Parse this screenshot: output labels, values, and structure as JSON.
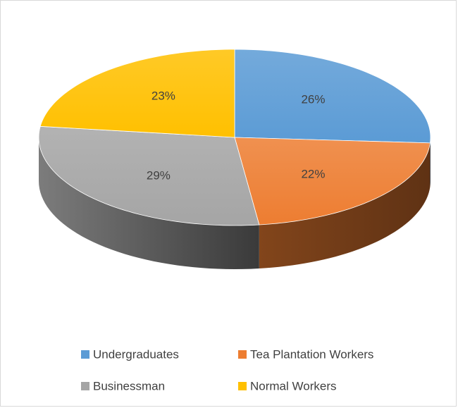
{
  "chart_data": {
    "type": "pie",
    "categories": [
      "Undergraduates",
      "Tea Plantation Workers",
      "Businessman",
      "Normal Workers"
    ],
    "values": [
      26,
      22,
      29,
      23
    ],
    "value_labels": [
      "26%",
      "22%",
      "29%",
      "23%"
    ],
    "colors": [
      "#5b9bd5",
      "#ed7d31",
      "#a5a5a5",
      "#ffc000"
    ],
    "legend": "bottom"
  }
}
